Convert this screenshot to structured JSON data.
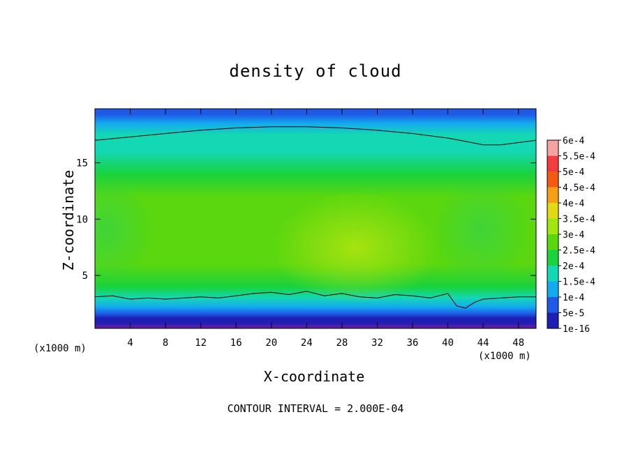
{
  "chart_data": {
    "type": "heatmap",
    "title": "density of cloud",
    "xlabel": "X-coordinate",
    "ylabel": "Z-coordinate",
    "x_unit": "(x1000 m)",
    "z_unit": "(x1000 m)",
    "xlim": [
      0,
      50
    ],
    "ylim": [
      0.3,
      19.8
    ],
    "x_ticks": [
      4,
      8,
      12,
      16,
      20,
      24,
      28,
      32,
      36,
      40,
      44,
      48
    ],
    "y_ticks": [
      5,
      10,
      15
    ],
    "contour_interval_text": "CONTOUR INTERVAL = 2.000E-04",
    "colorbar": {
      "labels": [
        "6e-4",
        "5.5e-4",
        "5e-4",
        "4.5e-4",
        "4e-4",
        "3.5e-4",
        "3e-4",
        "2.5e-4",
        "2e-4",
        "1.5e-4",
        "1e-4",
        "5e-5",
        "1e-16"
      ],
      "colors": [
        "#f5a3a3",
        "#f53c3c",
        "#f55a14",
        "#f5a014",
        "#e1d914",
        "#a0e60f",
        "#5ad70f",
        "#19d23c",
        "#14d7b4",
        "#14aaf0",
        "#1e5ae6",
        "#1e1eb4",
        "#6e1ea0"
      ]
    },
    "field_profile": {
      "z": [
        0.3,
        0.8,
        1.2,
        1.6,
        2.2,
        3.0,
        4.0,
        6.0,
        9.0,
        12.0,
        14.0,
        16.0,
        17.5,
        18.5,
        19.3,
        19.8
      ],
      "density": [
        1e-16,
        5e-05,
        8e-05,
        0.00011,
        0.00015,
        0.00022,
        0.00029,
        0.00032,
        0.00034,
        0.00032,
        0.00027,
        0.00023,
        0.0002,
        0.00017,
        0.00014,
        0.00012
      ]
    },
    "contours": [
      {
        "level": 0.0002,
        "x": [
          0,
          4,
          8,
          12,
          16,
          20,
          24,
          28,
          32,
          36,
          40,
          42,
          44,
          46,
          48,
          50
        ],
        "z": [
          17.0,
          17.3,
          17.6,
          17.9,
          18.1,
          18.2,
          18.2,
          18.1,
          17.9,
          17.6,
          17.2,
          16.9,
          16.6,
          16.6,
          16.8,
          17.0
        ]
      },
      {
        "level": 0.0002,
        "x": [
          0,
          2,
          4,
          6,
          8,
          10,
          12,
          14,
          16,
          18,
          20,
          22,
          24,
          26,
          28,
          30,
          32,
          34,
          36,
          38,
          40,
          41,
          42,
          43,
          44,
          46,
          48,
          50
        ],
        "z": [
          3.1,
          3.2,
          2.9,
          3.0,
          2.9,
          3.0,
          3.1,
          3.0,
          3.2,
          3.4,
          3.5,
          3.3,
          3.6,
          3.2,
          3.4,
          3.1,
          3.0,
          3.3,
          3.2,
          3.0,
          3.4,
          2.3,
          2.1,
          2.6,
          2.9,
          3.0,
          3.1,
          3.1
        ]
      }
    ]
  }
}
